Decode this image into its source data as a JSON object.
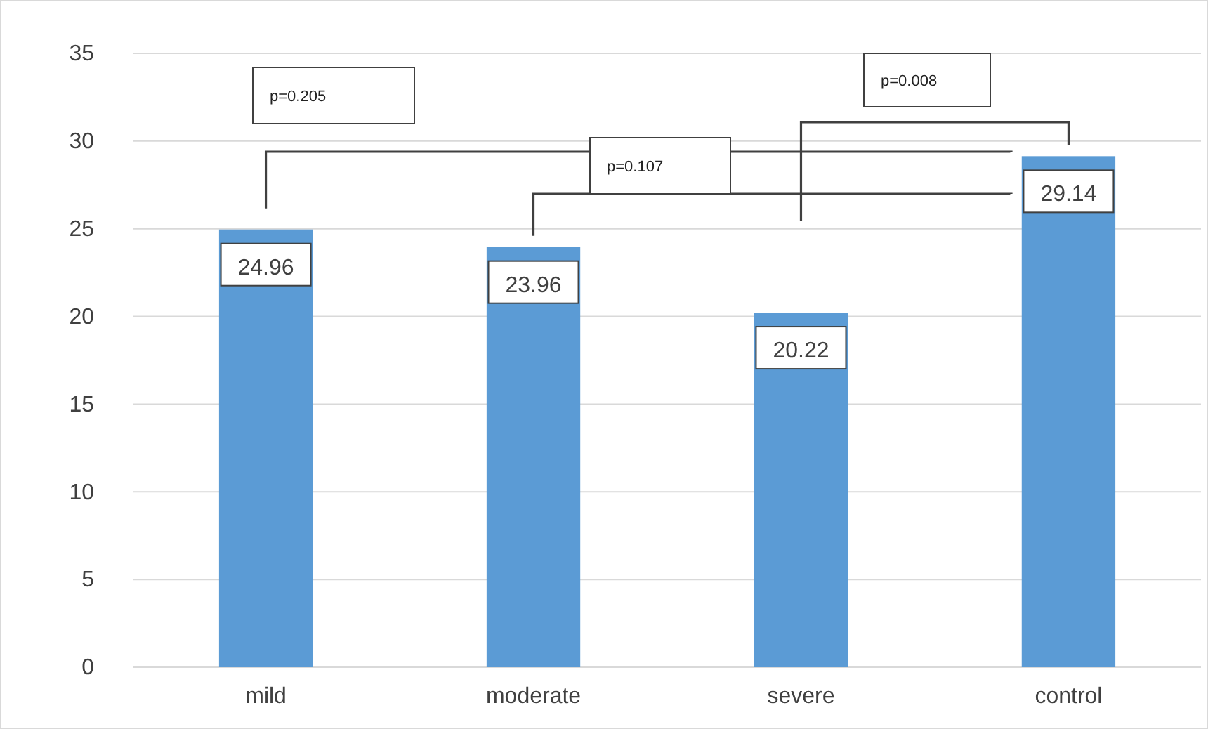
{
  "chart_data": {
    "type": "bar",
    "categories": [
      "mild",
      "moderate",
      "severe",
      "control"
    ],
    "values": [
      24.96,
      23.96,
      20.22,
      29.14
    ],
    "color": "#5b9bd5",
    "ylim": [
      0,
      35
    ],
    "yticks": [
      0,
      5,
      10,
      15,
      20,
      25,
      30,
      35
    ],
    "grid": "y",
    "data_labels": true,
    "annotations": [
      "p=0.205",
      "p=0.107",
      "p=0.008"
    ]
  }
}
